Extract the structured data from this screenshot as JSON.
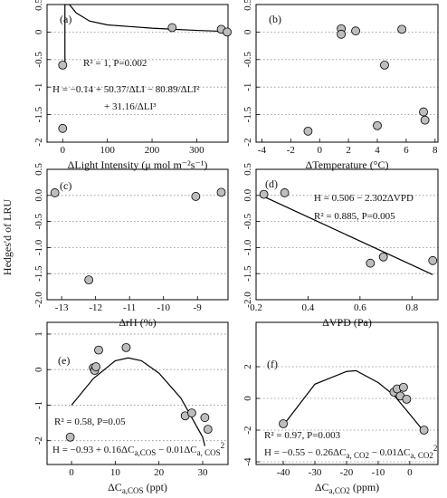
{
  "ylabel": "Hedges'd of LRU",
  "chart_data": [
    {
      "type": "scatter",
      "panel_label": "(a)",
      "xlabel": "ΔLight Intensity (μ mol m⁻²s⁻¹)",
      "xlim": [
        -35,
        370
      ],
      "ylim": [
        -2,
        0.5
      ],
      "xticks": [
        0,
        100,
        200,
        300
      ],
      "yticks": [
        0.5,
        0,
        -0.5,
        -1,
        -1.5,
        -2
      ],
      "grid": "y",
      "points": {
        "x": [
          0,
          0,
          245,
          355,
          368
        ],
        "y": [
          -0.6,
          -1.75,
          0.08,
          0.05,
          0.0
        ],
        "color": "#bdbdbd"
      },
      "fit": {
        "x": [
          5,
          5,
          15,
          30,
          60,
          100,
          150,
          200,
          250,
          300,
          370
        ],
        "y": [
          -0.55,
          0.5,
          0.5,
          0.35,
          0.2,
          0.13,
          0.1,
          0.07,
          0.05,
          0.03,
          0.01
        ],
        "color": "#000000"
      },
      "annotations": [
        "R² = 1, P=0.002",
        "H = −0.14 + 50.37/ΔLI − 80.89/ΔLI²",
        "+ 31.16/ΔLI³"
      ]
    },
    {
      "type": "scatter",
      "panel_label": "(b)",
      "xlabel": "ΔTemperature (°C)",
      "xlim": [
        -4.4,
        8.2
      ],
      "ylim": [
        -2,
        0.5
      ],
      "xticks": [
        -4,
        -2,
        0,
        2,
        4,
        6,
        8
      ],
      "yticks": [
        0.5,
        0,
        -0.5,
        -1,
        -1.5,
        -2
      ],
      "grid": "y",
      "points": {
        "x": [
          1.5,
          1.5,
          2.5,
          4.5,
          5.7,
          4.0,
          7.2,
          7.3,
          -0.8
        ],
        "y": [
          0.06,
          -0.04,
          0.02,
          -0.6,
          0.05,
          -1.7,
          -1.45,
          -1.6,
          -1.8
        ],
        "color": "#bdbdbd"
      },
      "annotations": []
    },
    {
      "type": "scatter",
      "panel_label": "(c)",
      "xlabel": "ΔrH (%)",
      "xlim": [
        -13.43,
        -8.1
      ],
      "ylim": [
        -2,
        0.5
      ],
      "xticks": [
        -13,
        -12,
        -11,
        -10,
        -9
      ],
      "yticks": [
        0.5,
        {
          "value": 0,
          "label": "0.0"
        },
        -0.5,
        {
          "value": -1,
          "label": "-1.0"
        },
        -1.5,
        {
          "value": -2,
          "label": "-2.0"
        }
      ],
      "grid": "y",
      "points": {
        "x": [
          -13.2,
          -12.2,
          -9.05,
          -8.3
        ],
        "y": [
          0.05,
          -1.62,
          -0.02,
          0.06
        ],
        "color": "#bdbdbd"
      },
      "annotations": []
    },
    {
      "type": "scatter",
      "panel_label": "(d)",
      "xlabel": "ΔVPD (Pa)",
      "xlim": [
        0.2,
        0.9
      ],
      "ylim": [
        -2,
        0.5
      ],
      "xticks": [
        0.2,
        0.4,
        0.6,
        0.8
      ],
      "yticks": [
        0.5,
        {
          "value": 0,
          "label": "0.0"
        },
        -0.5,
        {
          "value": -1,
          "label": "-1.0"
        },
        -1.5,
        {
          "value": -2,
          "label": "-2.0"
        }
      ],
      "grid": "y",
      "points": {
        "x": [
          0.23,
          0.31,
          0.64,
          0.69,
          0.88
        ],
        "y": [
          0.02,
          0.05,
          -1.3,
          -1.18,
          -1.25
        ],
        "color": "#bdbdbd"
      },
      "fit": {
        "x": [
          0.22,
          0.88
        ],
        "y": [
          0.0,
          -1.52
        ],
        "color": "#000000"
      },
      "annotations": [
        "H = 0.506 − 2.302ΔVPD",
        "R² = 0.885, P=0.005"
      ]
    },
    {
      "type": "scatter",
      "panel_label": "(e)",
      "xlabel": [
        {
          "text": "ΔC"
        },
        {
          "sub": "a,COS"
        },
        {
          "text": " (ppt)"
        }
      ],
      "xlim": [
        -5.6,
        35.8
      ],
      "ylim": [
        -2.67,
        1.33
      ],
      "xticks": [
        0,
        10,
        20,
        30
      ],
      "yticks": [
        1,
        0,
        -1,
        -2
      ],
      "grid": "y",
      "points": {
        "x": [
          -0.3,
          5.0,
          5.3,
          5.6,
          6.2,
          12.5,
          26,
          27.5,
          30.5,
          31.2
        ],
        "y": [
          -1.9,
          0.05,
          -0.02,
          0.08,
          0.55,
          0.62,
          -1.3,
          -1.22,
          -1.35,
          -1.68
        ],
        "color": "#bdbdbd"
      },
      "fit": {
        "x": [
          0,
          5,
          10,
          13,
          16,
          20,
          25,
          30,
          30.5
        ],
        "y": [
          -1.0,
          -0.25,
          0.25,
          0.33,
          0.25,
          -0.1,
          -0.8,
          -1.9,
          -2.15
        ],
        "color": "#000000"
      },
      "annotations": [
        "R² = 0.58, P=0.05",
        [
          {
            "text": "H = −0.93 + 0.16ΔC"
          },
          {
            "sub": "a,COS"
          },
          {
            "text": " − 0.01ΔC"
          },
          {
            "sub": "a, COS"
          },
          {
            "sup": "2"
          }
        ]
      ]
    },
    {
      "type": "scatter",
      "panel_label": "(f)",
      "xlabel": [
        {
          "text": "ΔC"
        },
        {
          "sub": "a,CO2"
        },
        {
          "text": " (ppm)"
        }
      ],
      "xlim": [
        -48.6,
        8.9
      ],
      "ylim": [
        -4.17,
        4.8
      ],
      "xticks": [
        -40,
        -30,
        -20,
        -10,
        0
      ],
      "yticks": [
        2,
        0,
        -2,
        -4
      ],
      "grid": "y",
      "points": {
        "x": [
          -40,
          -5,
          -4,
          -3,
          -2,
          -1,
          4.5
        ],
        "y": [
          -1.6,
          0.4,
          0.6,
          0.15,
          0.7,
          -0.05,
          -2.0
        ],
        "color": "#bdbdbd"
      },
      "fit": {
        "x": [
          -40,
          -30,
          -20,
          -17,
          -10,
          -5,
          0,
          4.5
        ],
        "y": [
          -1.7,
          0.9,
          1.7,
          1.75,
          1.0,
          0.2,
          -1.0,
          -2.1
        ],
        "color": "#000000"
      },
      "annotations": [
        "R² = 0.97, P=0.003",
        [
          {
            "text": "H = −0.55 − 0.26ΔC"
          },
          {
            "sub": "a, CO2"
          },
          {
            "text": " − 0.01ΔC"
          },
          {
            "sub": "a, CO2"
          },
          {
            "sup": "2"
          }
        ]
      ]
    }
  ]
}
